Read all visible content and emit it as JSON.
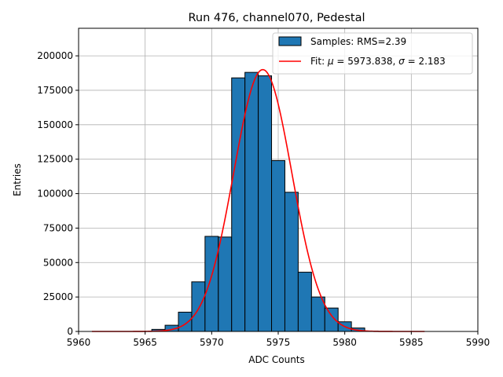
{
  "chart_data": {
    "type": "bar",
    "title": "Run 476, channel070, Pedestal",
    "xlabel": "ADC Counts",
    "ylabel": "Entries",
    "xlim": [
      5960,
      5990
    ],
    "ylim": [
      0,
      220000
    ],
    "x_ticks": [
      "5960",
      "5965",
      "5970",
      "5975",
      "5980",
      "5985",
      "5990"
    ],
    "y_ticks": [
      "0",
      "25000",
      "50000",
      "75000",
      "100000",
      "125000",
      "150000",
      "175000",
      "200000"
    ],
    "grid": true,
    "legend_position": "top-right",
    "bin_width": 1,
    "bin_centers": [
      5966,
      5967,
      5968,
      5969,
      5970,
      5971,
      5972,
      5973,
      5974,
      5975,
      5976,
      5977,
      5978,
      5979,
      5980,
      5981,
      5982
    ],
    "counts": [
      1500,
      4500,
      14000,
      36000,
      69000,
      68500,
      184000,
      188000,
      185500,
      124000,
      101000,
      43000,
      25000,
      17000,
      7000,
      2500,
      300
    ],
    "bar_color": "#1f77b4",
    "fit": {
      "mu": 5973.838,
      "sigma": 2.183,
      "amplitude": 190000,
      "x_range": [
        5961,
        5986
      ],
      "color": "#ff0000"
    },
    "legend": {
      "samples": "Samples: RMS=2.39",
      "fit_prefix": "Fit: ",
      "fit_mu_symbol": "μ",
      "fit_mu_text": " = 5973.838, ",
      "fit_sigma_symbol": "σ",
      "fit_sigma_text": " = 2.183"
    }
  }
}
